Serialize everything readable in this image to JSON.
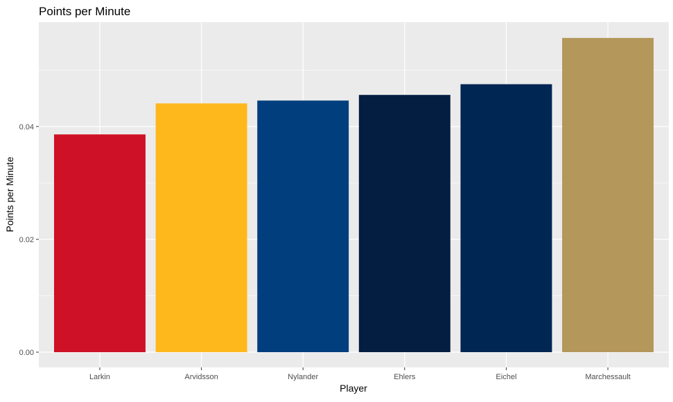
{
  "chart_data": {
    "type": "bar",
    "title": "Points per Minute",
    "xlabel": "Player",
    "ylabel": "Points per Minute",
    "categories": [
      "Larkin",
      "Arvidsson",
      "Nylander",
      "Ehlers",
      "Eichel",
      "Marchessault"
    ],
    "values": [
      0.0386,
      0.0441,
      0.0446,
      0.0456,
      0.0475,
      0.0557
    ],
    "colors": [
      "#ce1126",
      "#ffb81c",
      "#003e7e",
      "#041e42",
      "#002654",
      "#b4975a"
    ],
    "y_ticks": [
      {
        "value": 0.0,
        "label": "0.00"
      },
      {
        "value": 0.02,
        "label": "0.02"
      },
      {
        "value": 0.04,
        "label": "0.04"
      }
    ],
    "ylim": [
      -0.0027,
      0.0585
    ],
    "grid": true,
    "panel_background": "#ebebeb",
    "grid_color": "#ffffff"
  }
}
